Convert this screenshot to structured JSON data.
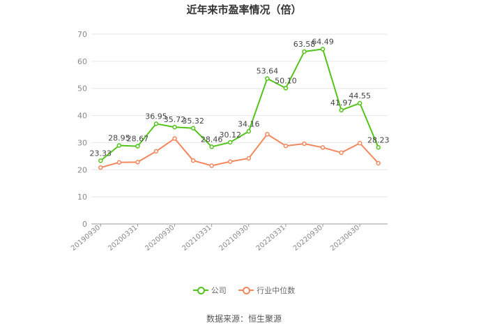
{
  "chart_data": {
    "type": "line",
    "title": "近年来市盈率情况（倍）",
    "x_tick_labels": [
      "20190930",
      "20200331",
      "20200930",
      "20210331",
      "20210930",
      "20220331",
      "20220930",
      "20230630"
    ],
    "ylim": [
      0,
      70
    ],
    "yticks": [
      "0",
      "10",
      "20",
      "30",
      "40",
      "50",
      "60",
      "70"
    ],
    "grid": true,
    "legend_position": "bottom",
    "series": [
      {
        "name": "公司",
        "color": "#52c41a",
        "values": [
          23.33,
          28.95,
          28.67,
          36.95,
          35.72,
          35.32,
          28.46,
          30.12,
          34.16,
          53.64,
          50.1,
          63.58,
          64.49,
          41.97,
          44.55,
          28.23
        ],
        "labels": [
          "23.33",
          "28.95",
          "28.67",
          "36.95",
          "35.72",
          "35.32",
          "28.46",
          "30.12",
          "34.16",
          "53.64",
          "50.10",
          "63.58",
          "64.49",
          "41.97",
          "44.55",
          "28.23"
        ]
      },
      {
        "name": "行业中位数",
        "color": "#f4875e",
        "values": [
          20.8,
          22.7,
          22.8,
          26.8,
          31.5,
          23.4,
          21.5,
          23.0,
          24.2,
          33.1,
          28.8,
          29.6,
          28.2,
          26.3,
          29.8,
          22.4
        ]
      }
    ]
  },
  "footer": {
    "source": "数据来源：恒生聚源"
  }
}
